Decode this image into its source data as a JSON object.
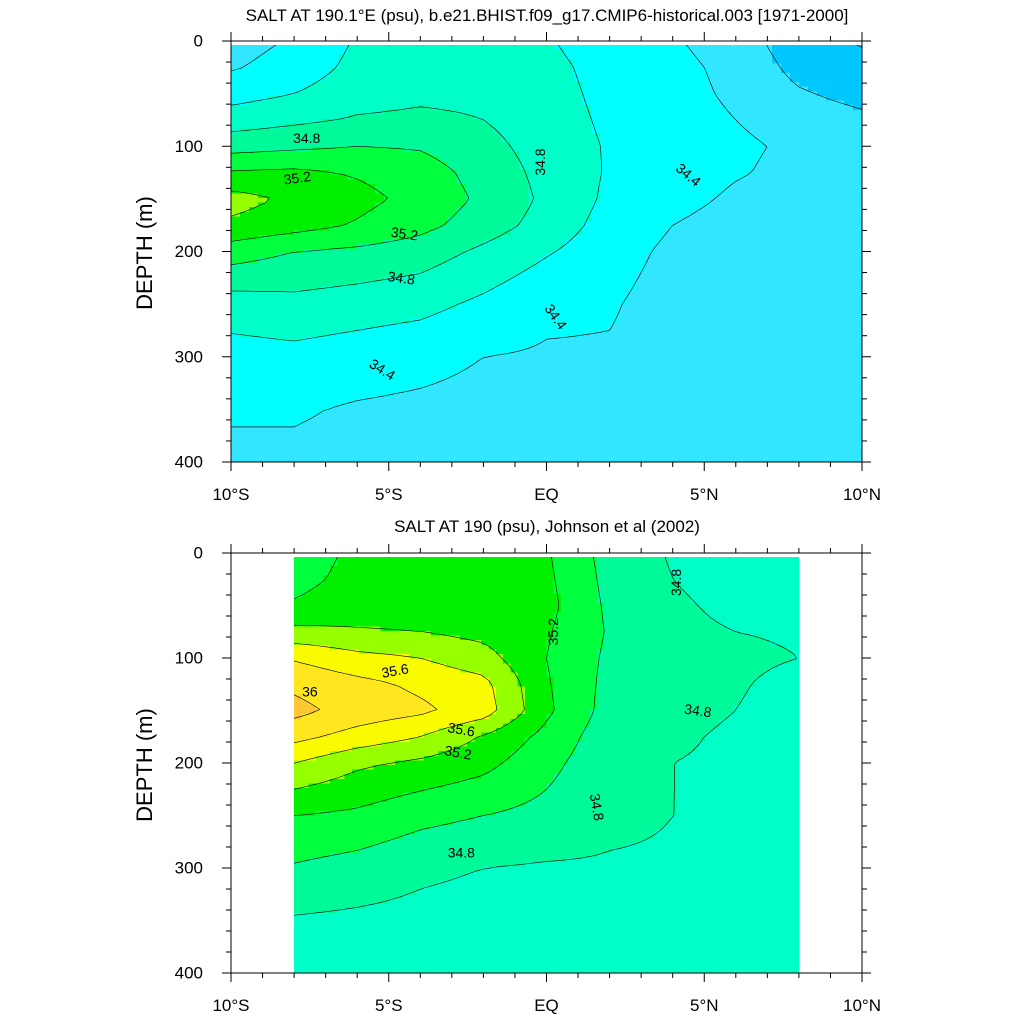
{
  "chart_data": [
    {
      "type": "heatmap",
      "subtype": "filled-contour",
      "title": "SALT AT 190.1°E (psu), b.e21.BHIST.f09_g17.CMIP6-historical.003 [1971-2000]",
      "ylabel": "DEPTH (m)",
      "xlabel": "",
      "xlim": [
        -10,
        10
      ],
      "ylim": [
        400,
        0
      ],
      "y_inverted": true,
      "data_xrange": [
        -10,
        10
      ],
      "x_ticks": [
        {
          "value": -10,
          "label": "10°S"
        },
        {
          "value": -5,
          "label": "5°S"
        },
        {
          "value": 0,
          "label": "EQ"
        },
        {
          "value": 5,
          "label": "5°N"
        },
        {
          "value": 10,
          "label": "10°N"
        }
      ],
      "y_ticks": [
        0,
        100,
        200,
        300,
        400
      ],
      "x_positions": [
        -10,
        -8,
        -6,
        -4,
        -2,
        0,
        2,
        4,
        6,
        8,
        10
      ],
      "depths": [
        0,
        25,
        50,
        75,
        100,
        125,
        150,
        175,
        200,
        250,
        300,
        350,
        400
      ],
      "levels": [
        34.0,
        34.2,
        34.4,
        34.6,
        34.8,
        35.0,
        35.2,
        35.4
      ],
      "colors": [
        "#0096ff",
        "#00c8ff",
        "#32e6ff",
        "#00ffff",
        "#00ffc8",
        "#00fa9a",
        "#00ff3c",
        "#00f000",
        "#96ff00"
      ],
      "values": [
        [
          34.32,
          34.42,
          34.62,
          34.72,
          34.72,
          34.62,
          34.48,
          34.42,
          34.3,
          34.08,
          33.98
        ],
        [
          34.38,
          34.48,
          34.66,
          34.74,
          34.74,
          34.66,
          34.52,
          34.46,
          34.34,
          34.14,
          34.06
        ],
        [
          34.52,
          34.6,
          34.72,
          34.76,
          34.76,
          34.68,
          34.54,
          34.48,
          34.36,
          34.22,
          34.14
        ],
        [
          34.7,
          34.76,
          34.82,
          34.84,
          34.8,
          34.7,
          34.56,
          34.5,
          34.4,
          34.3,
          34.24
        ],
        [
          34.92,
          34.96,
          35.0,
          34.98,
          34.86,
          34.72,
          34.58,
          34.52,
          34.44,
          34.36,
          34.3
        ],
        [
          35.22,
          35.24,
          35.18,
          35.1,
          34.92,
          34.74,
          34.58,
          34.52,
          34.42,
          34.34,
          34.3
        ],
        [
          35.48,
          35.36,
          35.26,
          35.14,
          34.96,
          34.76,
          34.56,
          34.48,
          34.36,
          34.3,
          34.28
        ],
        [
          35.36,
          35.28,
          35.18,
          35.06,
          34.9,
          34.72,
          34.52,
          34.4,
          34.3,
          34.26,
          34.26
        ],
        [
          35.1,
          35.0,
          34.96,
          34.9,
          34.76,
          34.62,
          34.48,
          34.36,
          34.26,
          34.24,
          34.26
        ],
        [
          34.7,
          34.74,
          34.7,
          34.66,
          34.56,
          34.44,
          34.42,
          34.32,
          34.26,
          34.26,
          34.32
        ],
        [
          34.52,
          34.54,
          34.5,
          34.46,
          34.4,
          34.38,
          34.38,
          34.32,
          34.28,
          34.3,
          34.38
        ],
        [
          34.42,
          34.42,
          34.38,
          34.36,
          34.34,
          34.34,
          34.36,
          34.34,
          34.32,
          34.34,
          34.4
        ],
        [
          34.36,
          34.36,
          34.34,
          34.34,
          34.34,
          34.34,
          34.34,
          34.34,
          34.34,
          34.36,
          34.4
        ]
      ],
      "contour_labels": [
        {
          "text": "34.8",
          "x": -7.6,
          "y": 92,
          "angle": 0
        },
        {
          "text": "35.2",
          "x": -7.9,
          "y": 130,
          "angle": 8
        },
        {
          "text": "35.2",
          "x": -4.5,
          "y": 183,
          "angle": -8
        },
        {
          "text": "34.8",
          "x": -4.6,
          "y": 225,
          "angle": -8
        },
        {
          "text": "34.4",
          "x": -5.2,
          "y": 312,
          "angle": -32
        },
        {
          "text": "34.8",
          "x": -0.2,
          "y": 115,
          "angle": 90
        },
        {
          "text": "34.4",
          "x": 0.3,
          "y": 262,
          "angle": -55
        },
        {
          "text": "34.4",
          "x": 4.5,
          "y": 127,
          "angle": -40
        }
      ]
    },
    {
      "type": "heatmap",
      "subtype": "filled-contour",
      "title": "SALT AT 190 (psu), Johnson et al (2002)",
      "ylabel": "DEPTH (m)",
      "xlabel": "",
      "xlim": [
        -10,
        10
      ],
      "ylim": [
        400,
        0
      ],
      "y_inverted": true,
      "data_xrange": [
        -8,
        8
      ],
      "x_ticks": [
        {
          "value": -10,
          "label": "10°S"
        },
        {
          "value": -5,
          "label": "5°S"
        },
        {
          "value": 0,
          "label": "EQ"
        },
        {
          "value": 5,
          "label": "5°N"
        },
        {
          "value": 10,
          "label": "10°N"
        }
      ],
      "y_ticks": [
        0,
        100,
        200,
        300,
        400
      ],
      "x_positions": [
        -8,
        -6,
        -4,
        -2,
        0,
        2,
        4,
        6,
        8
      ],
      "depths": [
        0,
        25,
        50,
        75,
        100,
        125,
        150,
        175,
        200,
        250,
        300,
        350,
        400
      ],
      "levels": [
        34.6,
        34.8,
        35.0,
        35.2,
        35.4,
        35.6,
        35.8,
        36.0
      ],
      "colors": [
        "#00ffff",
        "#00ffc8",
        "#00fa9a",
        "#00ff3c",
        "#00f000",
        "#96ff00",
        "#fafa00",
        "#ffe61e",
        "#ffc832"
      ],
      "values": [
        [
          35.1,
          35.24,
          35.26,
          35.26,
          35.22,
          34.92,
          34.78,
          34.68,
          34.62
        ],
        [
          35.14,
          35.26,
          35.28,
          35.28,
          35.24,
          34.94,
          34.8,
          34.7,
          34.64
        ],
        [
          35.22,
          35.3,
          35.32,
          35.3,
          35.26,
          34.96,
          34.84,
          34.74,
          34.68
        ],
        [
          35.46,
          35.42,
          35.4,
          35.34,
          35.22,
          34.98,
          34.86,
          34.8,
          34.78
        ],
        [
          35.78,
          35.66,
          35.6,
          35.48,
          35.2,
          34.96,
          34.88,
          34.84,
          34.8
        ],
        [
          35.96,
          35.86,
          35.76,
          35.66,
          35.22,
          34.94,
          34.86,
          34.82,
          34.74
        ],
        [
          36.06,
          35.92,
          35.84,
          35.7,
          35.24,
          34.92,
          34.84,
          34.8,
          34.72
        ],
        [
          35.86,
          35.72,
          35.6,
          35.38,
          35.14,
          34.88,
          34.82,
          34.78,
          34.74
        ],
        [
          35.6,
          35.44,
          35.36,
          35.26,
          35.06,
          34.86,
          34.8,
          34.78,
          34.76
        ],
        [
          35.2,
          35.16,
          35.06,
          35.0,
          34.94,
          34.84,
          34.8,
          34.78,
          34.78
        ],
        [
          34.98,
          34.92,
          34.84,
          34.8,
          34.78,
          34.78,
          34.78,
          34.76,
          34.76
        ],
        [
          34.78,
          34.76,
          34.74,
          34.72,
          34.72,
          34.72,
          34.72,
          34.72,
          34.72
        ],
        [
          34.72,
          34.72,
          34.72,
          34.72,
          34.72,
          34.72,
          34.72,
          34.72,
          34.72
        ]
      ],
      "contour_labels": [
        {
          "text": "36",
          "x": -7.5,
          "y": 132,
          "angle": 0
        },
        {
          "text": "35.6",
          "x": -4.8,
          "y": 112,
          "angle": 10
        },
        {
          "text": "35.6",
          "x": -2.7,
          "y": 168,
          "angle": -10
        },
        {
          "text": "35.2",
          "x": -2.8,
          "y": 190,
          "angle": -10
        },
        {
          "text": "34.8",
          "x": -2.7,
          "y": 285,
          "angle": 0
        },
        {
          "text": "35.2",
          "x": 0.2,
          "y": 75,
          "angle": 90
        },
        {
          "text": "34.8",
          "x": 1.6,
          "y": 242,
          "angle": -80
        },
        {
          "text": "34.8",
          "x": 4.1,
          "y": 28,
          "angle": 90
        },
        {
          "text": "34.8",
          "x": 4.8,
          "y": 150,
          "angle": -8
        }
      ]
    }
  ]
}
